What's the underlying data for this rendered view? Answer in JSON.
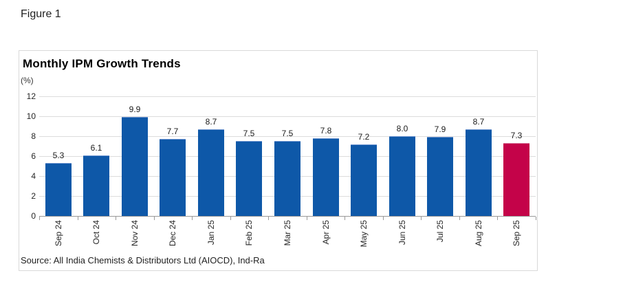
{
  "figure_label": "Figure 1",
  "chart": {
    "title": "Monthly IPM Growth Trends",
    "unit_label": "(%)",
    "source": "Source: All India Chemists & Distributors Ltd (AIOCD), Ind-Ra"
  },
  "chart_data": {
    "type": "bar",
    "title": "Monthly IPM Growth Trends",
    "xlabel": "",
    "ylabel": "(%)",
    "categories": [
      "Sep 24",
      "Oct 24",
      "Nov 24",
      "Dec 24",
      "Jan 25",
      "Feb 25",
      "Mar 25",
      "Apr 25",
      "May 25",
      "Jun 25",
      "Jul 25",
      "Aug 25",
      "Sep 25"
    ],
    "values": [
      5.3,
      6.1,
      9.9,
      7.7,
      8.7,
      7.5,
      7.5,
      7.8,
      7.2,
      8.0,
      7.9,
      8.7,
      7.3
    ],
    "ylim": [
      0,
      12
    ],
    "yticks": [
      0,
      2,
      4,
      6,
      8,
      10,
      12
    ],
    "grid": true,
    "legend": "none",
    "bar_color": "#0e58a8",
    "bar_top_edge_color": "#6a92cf",
    "highlight_index": 12,
    "highlight_color": "#c40349",
    "highlight_top_edge_color": "#d56d95",
    "value_labels_shown": true,
    "x_labels_rotation_degrees": -90
  }
}
